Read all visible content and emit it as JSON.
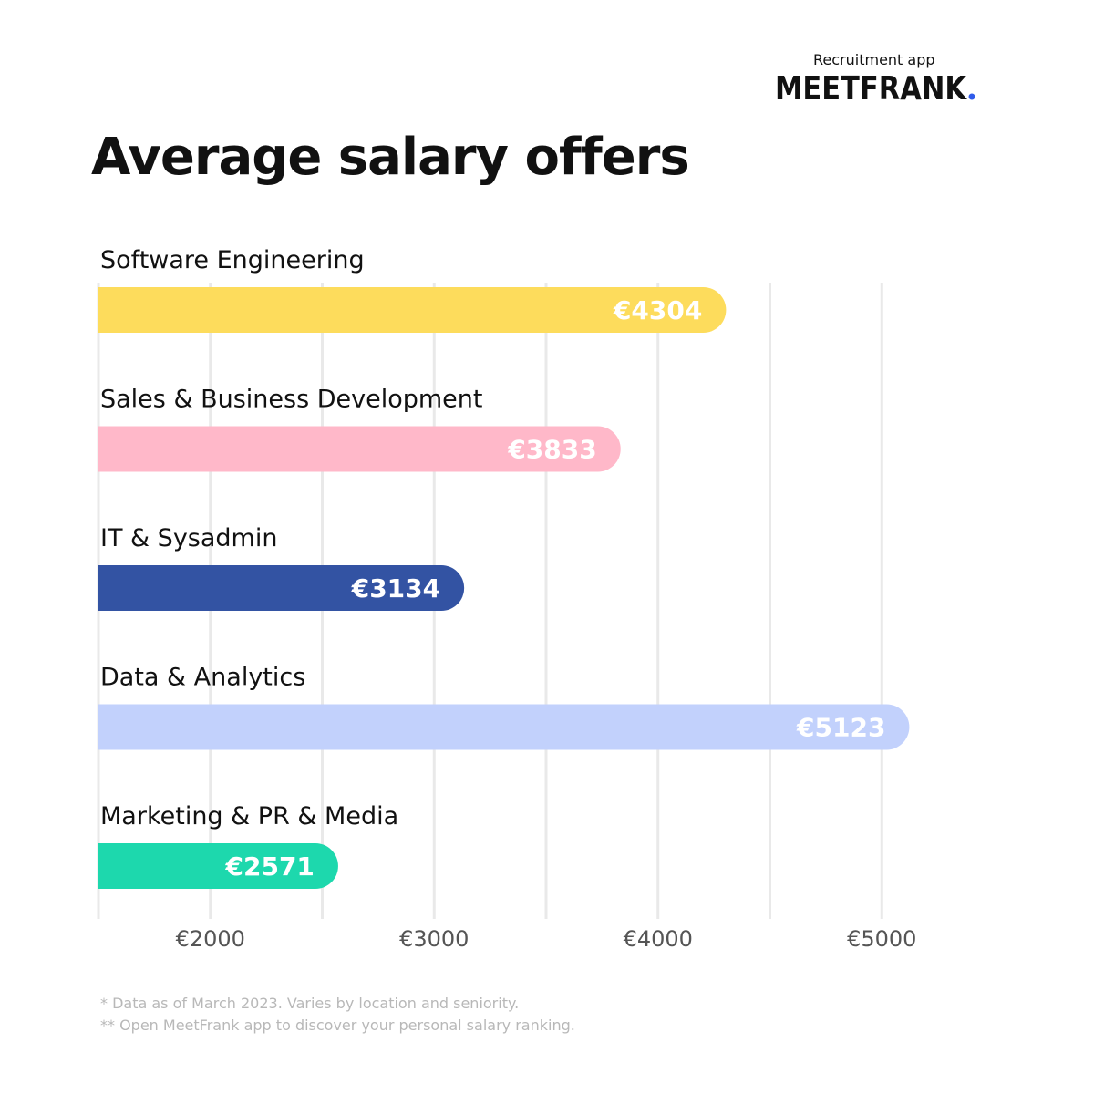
{
  "brand": {
    "tagline": "Recruitment app",
    "logo_text": "MEETFRANK",
    "accent": "#2f5bea"
  },
  "chart_data": {
    "type": "bar",
    "orientation": "horizontal",
    "title": "Average salary offers",
    "categories": [
      "Software Engineering",
      "Sales & Business Development",
      "IT & Sysadmin",
      "Data & Analytics",
      "Marketing & PR & Media"
    ],
    "values": [
      4304,
      3833,
      3134,
      5123,
      2571
    ],
    "value_labels": [
      "€4304",
      "€3833",
      "€3134",
      "€5123",
      "€2571"
    ],
    "colors": [
      "#fddc5c",
      "#ffb8c9",
      "#3353a3",
      "#c2d1fc",
      "#1dd8ad"
    ],
    "xticks": [
      2000,
      3000,
      4000,
      5000
    ],
    "xtick_labels": [
      "€2000",
      "€3000",
      "€4000",
      "€5000"
    ],
    "xlim": [
      1500,
      5500
    ],
    "grid": true,
    "xlabel": "",
    "ylabel": ""
  },
  "footnotes": [
    "* Data as of March 2023. Varies by location and seniority.",
    "** Open MeetFrank app to discover your personal salary ranking."
  ]
}
